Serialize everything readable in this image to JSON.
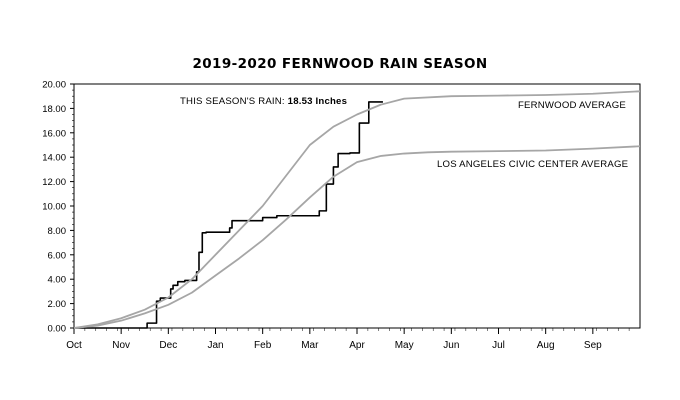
{
  "chart_data": {
    "type": "line",
    "title": "2019-2020 FERNWOOD RAIN SEASON",
    "xlabel": "",
    "ylabel": "",
    "ylim": [
      0,
      20
    ],
    "y_ticks": [
      "0.00",
      "2.00",
      "4.00",
      "6.00",
      "8.00",
      "10.00",
      "12.00",
      "14.00",
      "16.00",
      "18.00",
      "20.00"
    ],
    "x_ticks": [
      "Oct",
      "Nov",
      "Dec",
      "Jan",
      "Feb",
      "Mar",
      "Apr",
      "May",
      "Jun",
      "Jul",
      "Aug",
      "Sep"
    ],
    "grid": false,
    "annotations": {
      "season_label": "THIS SEASON'S RAIN:",
      "season_value": "18.53 Inches",
      "fernwood_average_label": "FERNWOOD AVERAGE",
      "la_average_label": "LOS ANGELES CIVIC CENTER AVERAGE"
    },
    "series": [
      {
        "name": "THIS SEASON'S RAIN",
        "color": "#000000",
        "step": true,
        "x": [
          0,
          1.55,
          1.55,
          1.75,
          1.75,
          1.83,
          1.83,
          2.05,
          2.05,
          2.1,
          2.1,
          2.2,
          2.2,
          2.35,
          2.35,
          2.6,
          2.6,
          2.65,
          2.65,
          2.72,
          2.72,
          2.8,
          2.8,
          3.3,
          3.3,
          3.35,
          3.35,
          4.0,
          4.0,
          4.3,
          4.3,
          5.2,
          5.2,
          5.35,
          5.35,
          5.5,
          5.5,
          5.6,
          5.6,
          5.85,
          5.85,
          6.05,
          6.05,
          6.25,
          6.25,
          6.55
        ],
        "values": [
          0,
          0,
          0.4,
          0.4,
          2.2,
          2.2,
          2.45,
          2.45,
          3.2,
          3.2,
          3.5,
          3.5,
          3.8,
          3.8,
          3.9,
          3.9,
          4.6,
          4.6,
          6.2,
          6.2,
          7.8,
          7.8,
          7.85,
          7.85,
          8.2,
          8.2,
          8.8,
          8.8,
          9.05,
          9.05,
          9.2,
          9.2,
          9.6,
          9.6,
          11.8,
          11.8,
          13.2,
          13.2,
          14.3,
          14.3,
          14.35,
          14.35,
          16.8,
          16.8,
          18.53,
          18.53
        ]
      },
      {
        "name": "FERNWOOD AVERAGE",
        "color": "#a6a6a6",
        "x": [
          0,
          0.5,
          1.0,
          1.5,
          2.0,
          2.5,
          3.0,
          3.5,
          4.0,
          4.5,
          5.0,
          5.5,
          6.0,
          6.5,
          7.0,
          8.0,
          9.0,
          10.0,
          11.0,
          12.0
        ],
        "values": [
          0,
          0.3,
          0.8,
          1.5,
          2.5,
          4.0,
          6.0,
          8.0,
          10.0,
          12.5,
          15.0,
          16.5,
          17.5,
          18.3,
          18.8,
          19.0,
          19.05,
          19.1,
          19.2,
          19.4
        ]
      },
      {
        "name": "LOS ANGELES CIVIC CENTER AVERAGE",
        "color": "#a6a6a6",
        "x": [
          0,
          0.5,
          1.0,
          1.5,
          2.0,
          2.5,
          3.0,
          3.5,
          4.0,
          4.5,
          5.0,
          5.5,
          6.0,
          6.5,
          7.0,
          7.5,
          8.0,
          9.0,
          10.0,
          11.0,
          12.0
        ],
        "values": [
          0,
          0.2,
          0.6,
          1.2,
          1.9,
          2.9,
          4.3,
          5.7,
          7.2,
          8.9,
          10.7,
          12.4,
          13.6,
          14.1,
          14.3,
          14.4,
          14.45,
          14.5,
          14.55,
          14.7,
          14.9
        ]
      }
    ]
  }
}
